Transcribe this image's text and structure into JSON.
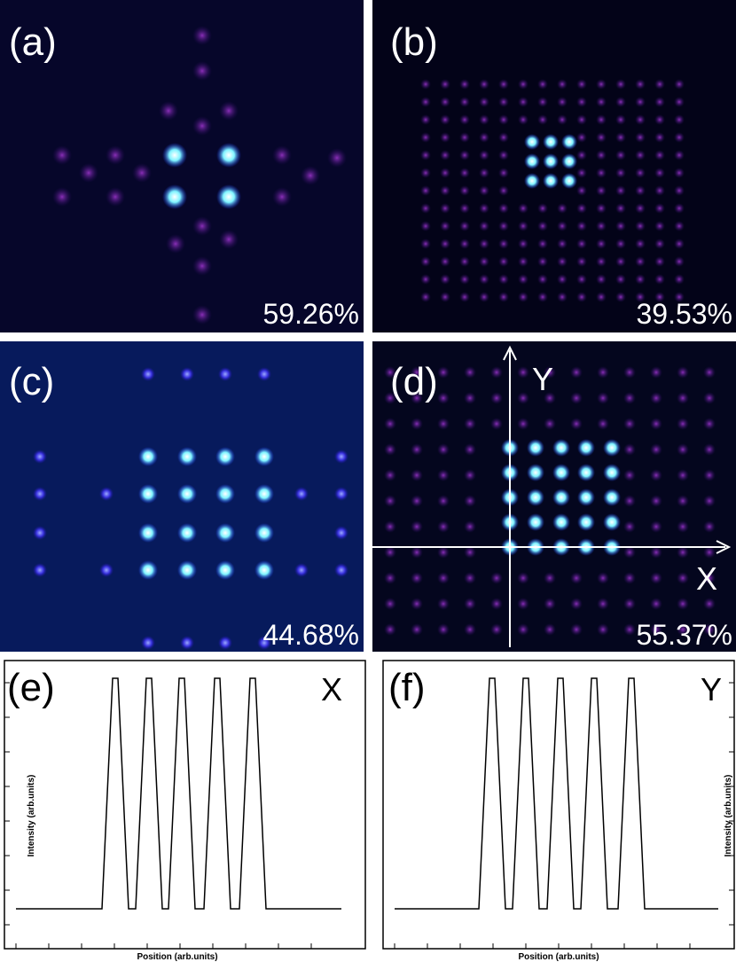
{
  "panels": [
    {
      "label": "(a)",
      "efficiency": "59.26%"
    },
    {
      "label": "(b)",
      "efficiency": "39.53%"
    },
    {
      "label": "(c)",
      "efficiency": "44.68%"
    },
    {
      "label": "(d)",
      "efficiency": "55.37%"
    }
  ],
  "panel_d_axes": {
    "x": "X",
    "y": "Y"
  },
  "profiles": [
    {
      "label": "(e)",
      "axis": "X",
      "x_label": "Position (arb.units)",
      "y_label": "Intensity (arb.units)"
    },
    {
      "label": "(f)",
      "axis": "Y",
      "x_label": "Position (arb.units)",
      "y_label": "Intensity (arb.units)"
    }
  ]
}
